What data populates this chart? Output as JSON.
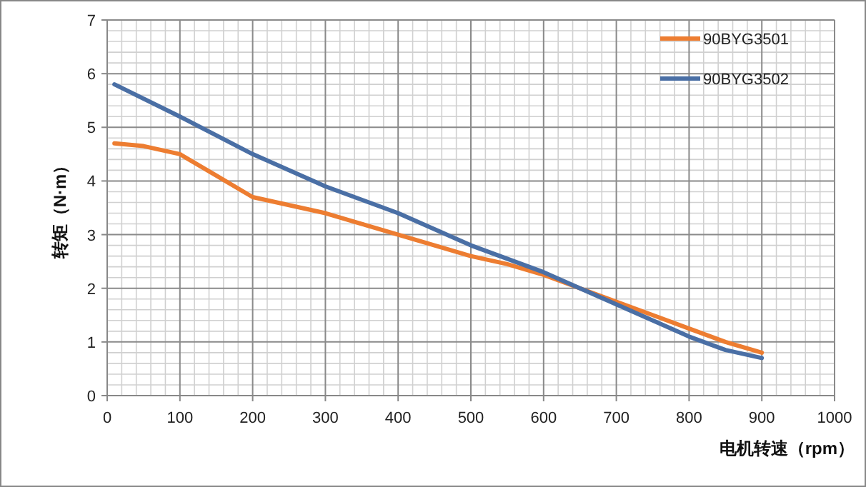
{
  "chart_data": {
    "type": "line",
    "xlabel": "电机转速（rpm）",
    "ylabel": "转矩（N·m）",
    "xlim": [
      0,
      1000
    ],
    "xticks": [
      0,
      100,
      200,
      300,
      400,
      500,
      600,
      700,
      800,
      900,
      1000
    ],
    "ylim": [
      0,
      7
    ],
    "yticks": [
      0,
      1,
      2,
      3,
      4,
      5,
      6,
      7
    ],
    "grid": true,
    "legend": "top right",
    "marker": "none",
    "line_style": "solid",
    "series": [
      {
        "name": "90BYG3501",
        "color": "#ed7d31",
        "x": [
          10,
          50,
          100,
          150,
          200,
          250,
          300,
          350,
          400,
          450,
          500,
          550,
          600,
          650,
          700,
          750,
          800,
          850,
          900
        ],
        "values": [
          4.7,
          4.65,
          4.5,
          4.1,
          3.7,
          3.55,
          3.4,
          3.2,
          3.0,
          2.8,
          2.6,
          2.45,
          2.25,
          2.0,
          1.75,
          1.5,
          1.25,
          1.0,
          0.8
        ]
      },
      {
        "name": "90BYG3502",
        "color": "#4a6fa5",
        "x": [
          10,
          100,
          200,
          300,
          400,
          450,
          500,
          550,
          600,
          650,
          700,
          750,
          800,
          850,
          900
        ],
        "values": [
          5.8,
          5.2,
          4.5,
          3.9,
          3.4,
          3.1,
          2.8,
          2.55,
          2.3,
          2.0,
          1.7,
          1.4,
          1.1,
          0.85,
          0.7
        ]
      }
    ]
  }
}
